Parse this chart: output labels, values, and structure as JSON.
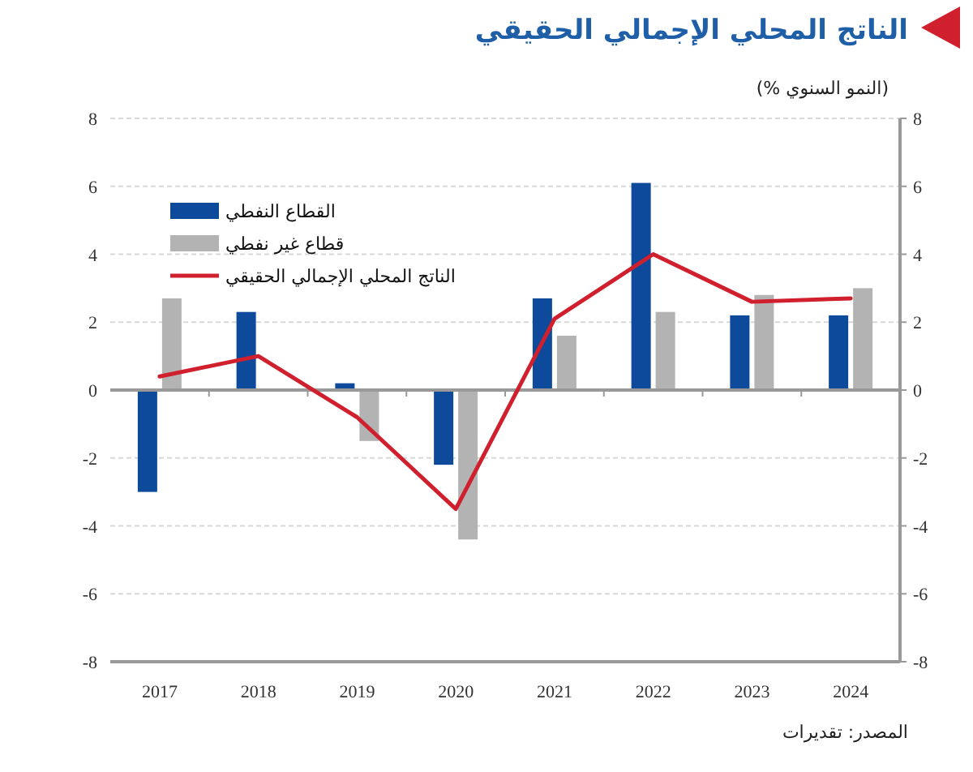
{
  "chart_data": {
    "type": "bar",
    "title": "الناتج المحلي الإجمالي الحقيقي",
    "subtitle": "(النمو السنوي %)",
    "annotations": [
      "المصدر: تقديرات"
    ],
    "categories": [
      "2017",
      "2018",
      "2019",
      "2020",
      "2021",
      "2022",
      "2023",
      "2024"
    ],
    "series": [
      {
        "name": "القطاع النفطي",
        "color": "#0d4a9b",
        "values": [
          -3.0,
          2.3,
          0.2,
          -2.2,
          2.7,
          6.1,
          2.2,
          2.2
        ]
      },
      {
        "name": "قطاع غير نفطي",
        "color": "#b3b3b3",
        "values": [
          2.7,
          0.0,
          -1.5,
          -4.4,
          1.6,
          2.3,
          2.8,
          3.0
        ]
      },
      {
        "name": "الناتج المحلي الإجمالي الحقيقي",
        "type": "line",
        "color": "#d0202e",
        "marker": "none",
        "line_style": "solid",
        "values": [
          0.4,
          1.0,
          -0.8,
          -3.5,
          2.1,
          4.0,
          2.6,
          2.7
        ]
      }
    ],
    "ylim": [
      -8,
      8
    ],
    "yticks": [
      -8,
      -6,
      -4,
      -2,
      0,
      2,
      4,
      6,
      8
    ],
    "y2lim": [
      -8,
      8
    ],
    "y2ticks": [
      -8,
      -6,
      -4,
      -2,
      0,
      2,
      4,
      6,
      8
    ],
    "grid": "y",
    "legend": "top left"
  }
}
